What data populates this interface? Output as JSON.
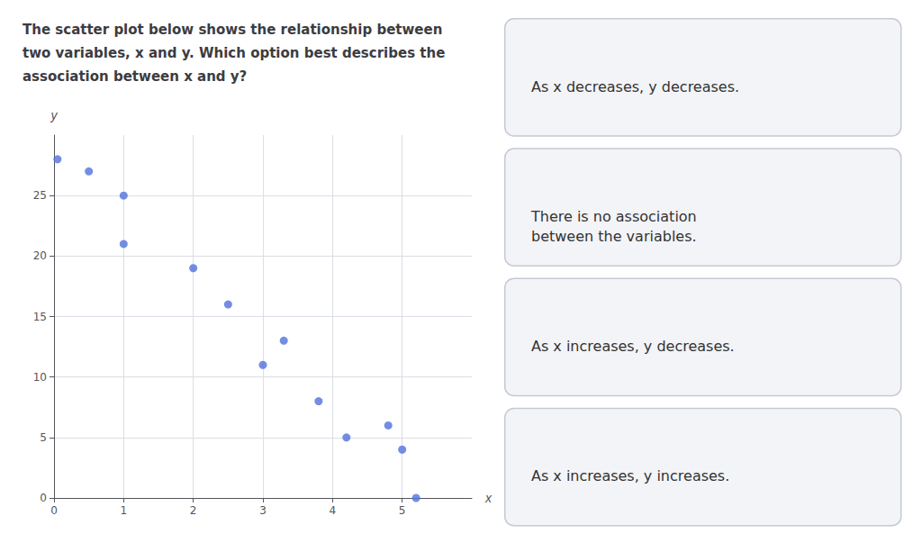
{
  "chart_data": {
    "type": "scatter",
    "title": "The scatter plot below shows the relationship between\ntwo variables, x and y. Which option best describes the\nassociation between x and y?",
    "x": [
      0.05,
      0.5,
      1.0,
      1.0,
      2.0,
      2.5,
      3.0,
      3.3,
      3.8,
      4.2,
      4.8,
      5.0,
      5.2
    ],
    "values": [
      28,
      27,
      25,
      21,
      19,
      16,
      11,
      13,
      8,
      5,
      6,
      4,
      0
    ],
    "xlabel": "x",
    "ylabel": "y",
    "xlim": [
      0,
      6
    ],
    "ylim": [
      0,
      30
    ],
    "xticks": [
      0,
      1,
      2,
      3,
      4,
      5
    ],
    "yticks": [
      0,
      5,
      10,
      15,
      20,
      25
    ],
    "grid": true,
    "annotations": [
      "As x decreases, y decreases.",
      "There is no association\nbetween the variables.",
      "As x increases, y decreases.",
      "As x increases, y increases."
    ]
  }
}
